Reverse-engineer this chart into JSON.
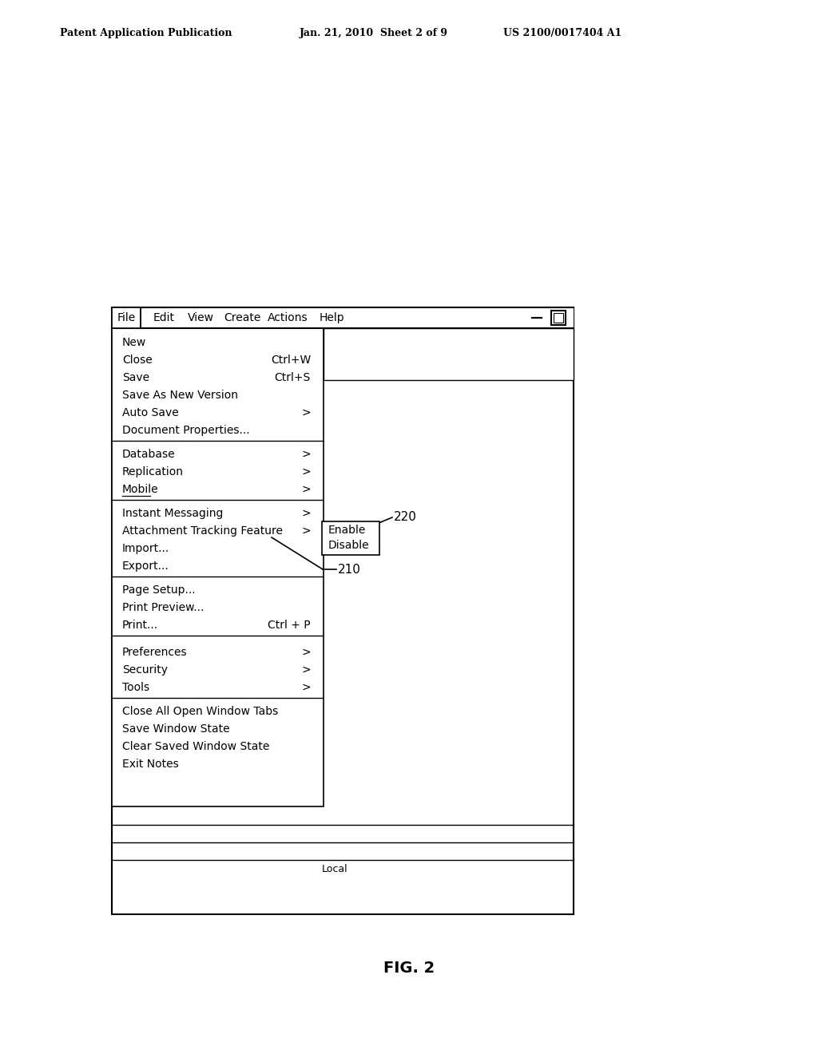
{
  "bg_color": "#ffffff",
  "header_text": "Patent Application Publication",
  "header_date": "Jan. 21, 2010  Sheet 2 of 9",
  "header_patent": "US 2100/0017404 A1",
  "fig_label": "FIG. 2",
  "menu_group1": [
    "New",
    "Close",
    "Save",
    "Save As New Version",
    "Auto Save",
    "Document Properties..."
  ],
  "menu_group1_sc": [
    "",
    "Ctrl+W",
    "Ctrl+S",
    "",
    ">",
    ""
  ],
  "menu_group2": [
    "Database",
    "Replication",
    "Mobile"
  ],
  "menu_group2_sc": [
    ">",
    ">",
    ">"
  ],
  "menu_group3": [
    "Instant Messaging",
    "Attachment Tracking Feature"
  ],
  "menu_group3_sc": [
    ">",
    ">"
  ],
  "menu_group4": [
    "Import...",
    "Export..."
  ],
  "menu_group4_sc": [
    "",
    ""
  ],
  "menu_group5": [
    "Page Setup...",
    "Print Preview...",
    "Print..."
  ],
  "menu_group5_sc": [
    "",
    "",
    "Ctrl + P"
  ],
  "menu_group6": [
    "Preferences",
    "Security",
    "Tools"
  ],
  "menu_group6_sc": [
    ">",
    ">",
    ">"
  ],
  "menu_group7": [
    "Close All Open Window Tabs",
    "Save Window State",
    "Clear Saved Window State",
    "Exit Notes"
  ],
  "submenu_items": [
    "Enable",
    "Disable"
  ],
  "label_220": "220",
  "label_210": "210",
  "menubar_items": [
    "File",
    "Edit",
    "View",
    "Create",
    "Actions",
    "Help"
  ],
  "header_patent_corrected": "US 2100/0017404 A1"
}
